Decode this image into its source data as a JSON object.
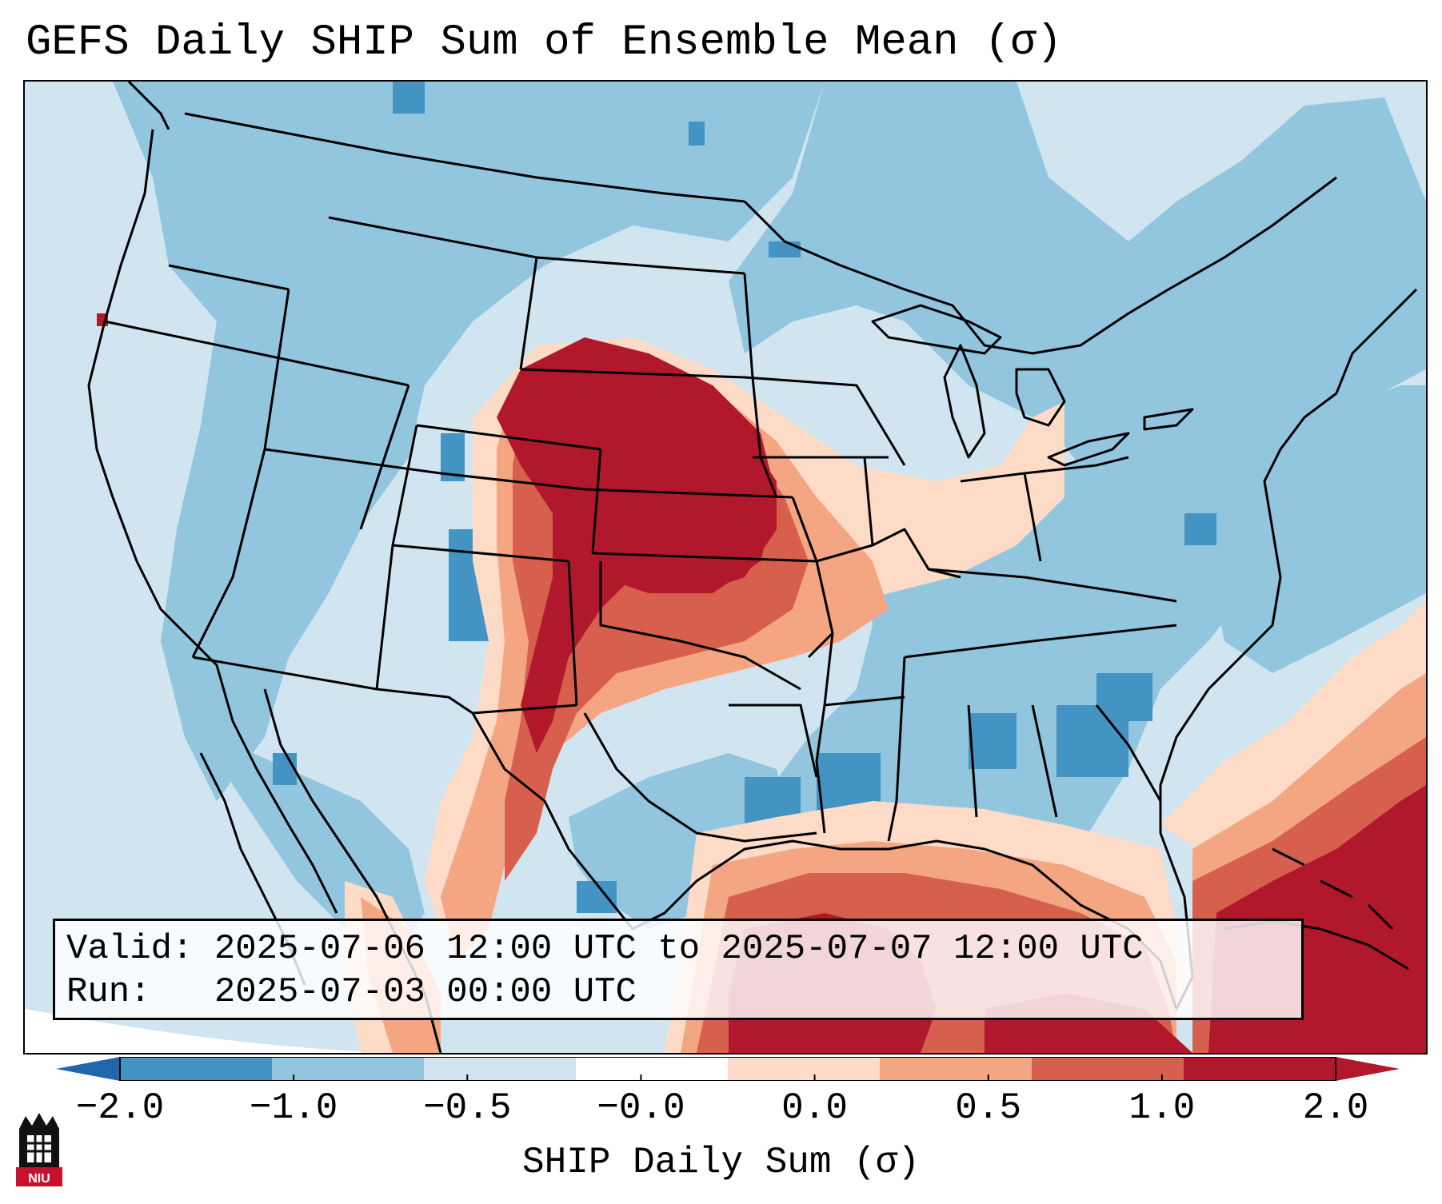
{
  "title": "GEFS Daily SHIP Sum of Ensemble Mean (σ)",
  "info": {
    "valid_label": "Valid:",
    "valid_value": "2025-07-06 12:00 UTC to 2025-07-07 12:00 UTC",
    "run_label": "Run:",
    "run_value": "2025-07-03 00:00 UTC"
  },
  "colorbar": {
    "label": "SHIP Daily Sum (σ)",
    "ticks": [
      "−2.0",
      "−1.0",
      "−0.5",
      "−0.0",
      "0.0",
      "0.5",
      "1.0",
      "2.0"
    ],
    "colors": [
      "#4393c3",
      "#92c5de",
      "#d1e5f0",
      "#ffffff",
      "#fddbc7",
      "#f4a582",
      "#d6604d",
      "#b2182b"
    ],
    "extend_low_color": "#2166ac",
    "extend_high_color": "#b2182b"
  },
  "map": {
    "region": "Contiguous United States, southern Canada, northern Mexico, Gulf of Mexico",
    "background_color": "#d1e5f0",
    "highlights": {
      "strong_positive": "Central Plains (Nebraska, Kansas, eastern Wyoming/Colorado), northern Gulf of Mexico, Atlantic southeast",
      "negative": "Colorado/Utah, Southeast US (Georgia, Alabama, Arkansas), central Texas"
    }
  },
  "logo": {
    "text": "NIU",
    "color": "#c8102e"
  }
}
